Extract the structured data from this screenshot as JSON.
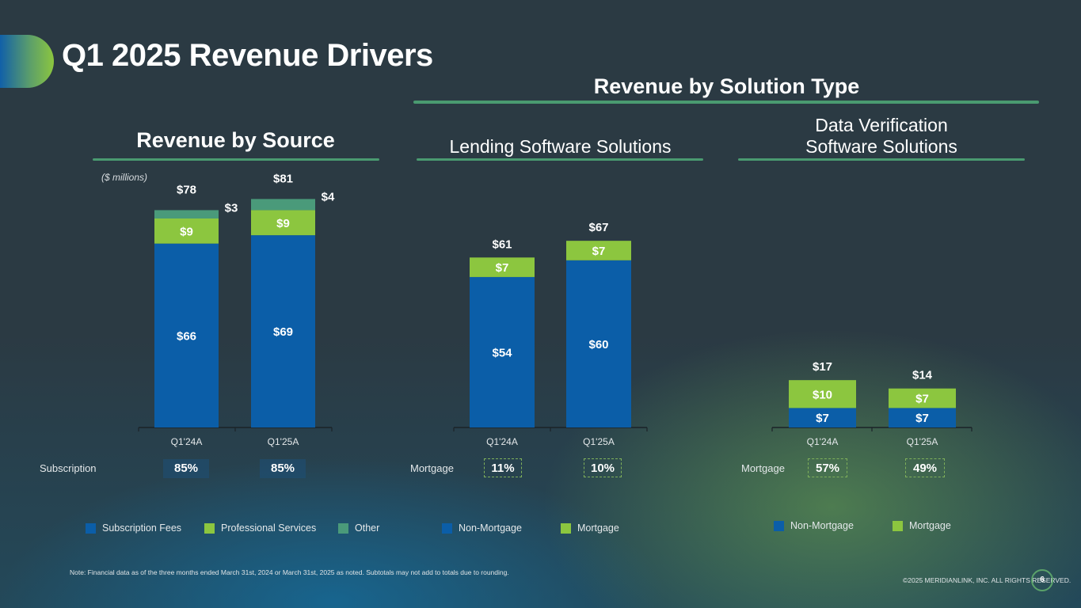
{
  "header": {
    "title": "Q1 2025 Revenue Drivers"
  },
  "sections": {
    "by_source": "Revenue by Source",
    "by_solution_type": "Revenue by Solution Type",
    "lending": "Lending Software Solutions",
    "data_verification_line1": "Data Verification",
    "data_verification_line2": "Software Solutions",
    "units": "($ millions)"
  },
  "colors": {
    "blue": "#0b5ea8",
    "light_green": "#8cc63f",
    "teal": "#4a9a7a",
    "accent_rule": "#4a9a70"
  },
  "chart_data": [
    {
      "id": "revenue-by-source",
      "type": "bar",
      "stacked": true,
      "title": "Revenue by Source",
      "ylabel": "($ millions)",
      "categories": [
        "Q1'24A",
        "Q1'25A"
      ],
      "series": [
        {
          "name": "Subscription Fees",
          "values": [
            66,
            69
          ],
          "labels": [
            "$66",
            "$69"
          ],
          "color": "#0b5ea8"
        },
        {
          "name": "Professional Services",
          "values": [
            9,
            9
          ],
          "labels": [
            "$9",
            "$9"
          ],
          "color": "#8cc63f"
        },
        {
          "name": "Other",
          "values": [
            3,
            4
          ],
          "labels": [
            "$3",
            "$4"
          ],
          "color": "#4a9a7a"
        }
      ],
      "totals": [
        78,
        81
      ],
      "total_labels": [
        "$78",
        "$81"
      ],
      "ylim": [
        0,
        81
      ],
      "share_row": {
        "label": "Subscription",
        "values": [
          "85%",
          "85%"
        ]
      }
    },
    {
      "id": "lending-software",
      "type": "bar",
      "stacked": true,
      "title": "Lending Software Solutions",
      "categories": [
        "Q1'24A",
        "Q1'25A"
      ],
      "series": [
        {
          "name": "Non-Mortgage",
          "values": [
            54,
            60
          ],
          "labels": [
            "$54",
            "$60"
          ],
          "color": "#0b5ea8"
        },
        {
          "name": "Mortgage",
          "values": [
            7,
            7
          ],
          "labels": [
            "$7",
            "$7"
          ],
          "color": "#8cc63f"
        }
      ],
      "totals": [
        61,
        67
      ],
      "total_labels": [
        "$61",
        "$67"
      ],
      "ylim": [
        0,
        81
      ],
      "share_row": {
        "label": "Mortgage",
        "values": [
          "11%",
          "10%"
        ]
      }
    },
    {
      "id": "data-verification",
      "type": "bar",
      "stacked": true,
      "title": "Data Verification Software Solutions",
      "categories": [
        "Q1'24A",
        "Q1'25A"
      ],
      "series": [
        {
          "name": "Non-Mortgage",
          "values": [
            7,
            7
          ],
          "labels": [
            "$7",
            "$7"
          ],
          "color": "#0b5ea8"
        },
        {
          "name": "Mortgage",
          "values": [
            10,
            7
          ],
          "labels": [
            "$10",
            "$7"
          ],
          "color": "#8cc63f"
        }
      ],
      "totals": [
        17,
        14
      ],
      "total_labels": [
        "$17",
        "$14"
      ],
      "ylim": [
        0,
        81
      ],
      "share_row": {
        "label": "Mortgage",
        "values": [
          "57%",
          "49%"
        ]
      }
    }
  ],
  "legends": {
    "source": [
      "Subscription Fees",
      "Professional Services",
      "Other"
    ],
    "lending": [
      "Non-Mortgage",
      "Mortgage"
    ],
    "data_verification": [
      "Non-Mortgage",
      "Mortgage"
    ]
  },
  "footer": {
    "note": "Note: Financial data as of the three months ended March 31st, 2024 or March 31st, 2025 as noted. Subtotals may not add to totals due to rounding.",
    "copyright": "©2025 MERIDIANLINK, INC. ALL RIGHTS RESERVED.",
    "page_number": "6"
  }
}
